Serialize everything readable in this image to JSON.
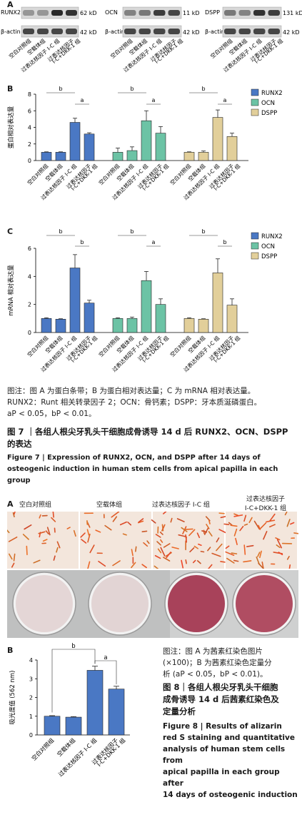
{
  "fig7": {
    "panel_a": "A",
    "panel_b": "B",
    "panel_c": "C",
    "blots": [
      {
        "protein": "RUNX2",
        "kda": "62 kD",
        "actin": "β-actin",
        "actin_kda": "42 kD"
      },
      {
        "protein": "OCN",
        "kda": "11 kD",
        "actin": "β-actin",
        "actin_kda": "42 kD"
      },
      {
        "protein": "DSPP",
        "kda": "131 kD",
        "actin": "β-actin",
        "actin_kda": "42 kD"
      }
    ],
    "groups": [
      "空白对照组",
      "空载体组",
      "过表达核因子 I-C 组",
      "过表达核因子 I-C+DKK-1 组"
    ],
    "group_label_lines": [
      [
        "空白对照组"
      ],
      [
        "空载体组"
      ],
      [
        "过表达核因子 I-C 组"
      ],
      [
        "过表达核因子",
        "I-C+DKK-1 组"
      ]
    ],
    "sig_b": "b",
    "sig_a": "a",
    "note_lines": [
      "图注：图 A 为蛋白条带；B 为蛋白相对表达量；C 为 mRNA 相对表达量。",
      "RUNX2：Runt 相关转录因子 2；OCN：骨钙素；DSPP：牙本质涎磷蛋白。",
      "aP < 0.05，bP < 0.01。"
    ],
    "caption_cn_1": "图 7 ｜各组人根尖牙乳头干细胞成骨诱导 14 d 后 RUNX2、OCN、DSPP",
    "caption_cn_2": "的表达",
    "caption_en_1": "Figure 7  |  Expression of RUNX2, OCN, and DSPP after 14 days of",
    "caption_en_2": "osteogenic induction in human stem cells from apical papilla in each group"
  },
  "fig8": {
    "panel_a": "A",
    "panel_b": "B",
    "photo_labels": [
      "空白对照组",
      "空载体组",
      "过表达核因子 I-C 组",
      "过表达核因子",
      "I-C+DKK-1 组"
    ],
    "note_lines": [
      "图注：图 A 为茜素红染色图片",
      "(×100)；B 为茜素红染色定量分",
      "析 (aP < 0.05，bP < 0.01)。"
    ],
    "caption_cn": [
      "图 8｜各组人根尖牙乳头干细胞",
      "成骨诱导 14 d 后茜素红染色及",
      "定量分析"
    ],
    "caption_en": [
      "Figure 8  |  Results of alizarin",
      "red S staining and quantitative",
      "analysis of human stem cells from",
      "apical papilla in each group after",
      "14 days of osteogenic induction"
    ]
  },
  "chart_data": [
    {
      "type": "bar",
      "title": "",
      "ylabel": "蛋白相对表达量",
      "ylim": [
        0,
        8
      ],
      "yticks": [
        0,
        2,
        4,
        6,
        8
      ],
      "categories": [
        "空白对照组",
        "空载体组",
        "过表达核因子 I-C 组",
        "过表达核因子 I-C+DKK-1 组"
      ],
      "series": [
        {
          "name": "RUNX2",
          "color": "#4a78c4",
          "values": [
            1.0,
            1.0,
            4.6,
            3.2
          ],
          "errors": [
            0.05,
            0.05,
            0.5,
            0.15
          ]
        },
        {
          "name": "OCN",
          "color": "#6cc3a5",
          "values": [
            1.0,
            1.2,
            4.8,
            3.3
          ],
          "errors": [
            0.5,
            0.45,
            1.2,
            0.8
          ]
        },
        {
          "name": "DSPP",
          "color": "#e2cf9a",
          "values": [
            1.0,
            1.0,
            5.2,
            2.9
          ],
          "errors": [
            0.05,
            0.15,
            0.9,
            0.4
          ]
        }
      ],
      "legend": "top-right"
    },
    {
      "type": "bar",
      "title": "",
      "ylabel": "mRNA 相对表达量",
      "ylim": [
        0,
        6
      ],
      "yticks": [
        0,
        2,
        4,
        6
      ],
      "categories": [
        "空白对照组",
        "空载体组",
        "过表达核因子 I-C 组",
        "过表达核因子 I-C+DKK-1 组"
      ],
      "series": [
        {
          "name": "RUNX2",
          "color": "#4a78c4",
          "values": [
            1.0,
            0.95,
            4.6,
            2.1
          ],
          "errors": [
            0.05,
            0.03,
            0.95,
            0.2
          ]
        },
        {
          "name": "OCN",
          "color": "#6cc3a5",
          "values": [
            1.0,
            1.0,
            3.7,
            2.0
          ],
          "errors": [
            0.05,
            0.1,
            0.65,
            0.4
          ]
        },
        {
          "name": "DSPP",
          "color": "#e2cf9a",
          "values": [
            1.0,
            0.95,
            4.25,
            1.95
          ],
          "errors": [
            0.05,
            0.03,
            1.0,
            0.45
          ]
        }
      ],
      "legend": "top-right"
    },
    {
      "type": "bar",
      "title": "",
      "ylabel": "吸光度值 (562 nm)",
      "ylim": [
        0,
        4
      ],
      "yticks": [
        0,
        1,
        2,
        3,
        4
      ],
      "categories": [
        "空白对照组",
        "空载体组",
        "过表达核因子 I-C 组",
        "过表达核因子 I-C+DKK-1 组"
      ],
      "series": [
        {
          "name": "",
          "color": "#4a78c4",
          "values": [
            1.0,
            0.95,
            3.45,
            2.45
          ],
          "errors": [
            0.03,
            0.03,
            0.22,
            0.15
          ]
        }
      ]
    }
  ]
}
